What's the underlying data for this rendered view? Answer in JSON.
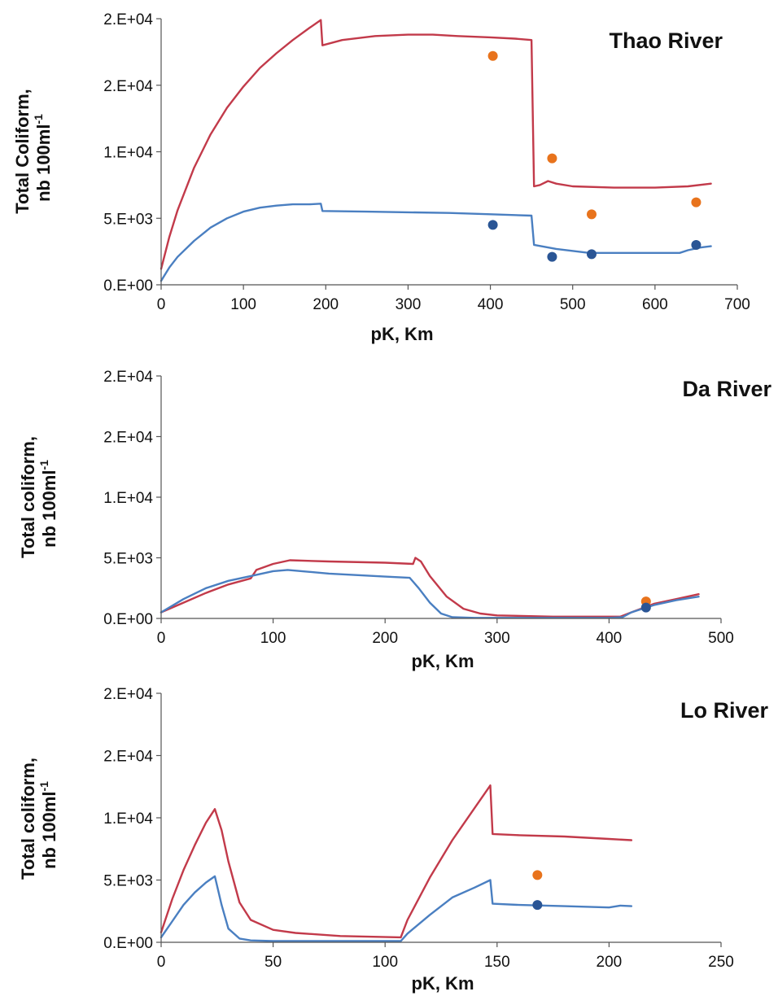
{
  "colors": {
    "simulated_high": "#c23a4a",
    "simulated_low": "#4a7fc1",
    "observed_high": "#e8731c",
    "observed_low": "#2a5595",
    "axis": "#555555"
  },
  "chart_data": [
    {
      "type": "line",
      "title": "Thao River",
      "xlabel": "pK, Km",
      "ylabel_line1": "Total Coliform,",
      "ylabel_line2": "nb 100ml",
      "ylabel_sup": "-1",
      "xlim": [
        0,
        700
      ],
      "x_ticks": [
        0,
        100,
        200,
        300,
        400,
        500,
        600,
        700
      ],
      "x_tick_labels": [
        "0",
        "100",
        "200",
        "300",
        "400",
        "500",
        "600",
        "700"
      ],
      "ylim": [
        0,
        20000
      ],
      "y_ticks": [
        0,
        5000,
        10000,
        15000,
        20000
      ],
      "y_tick_labels": [
        "0.E+00",
        "5.E+03",
        "1.E+04",
        "2.E+04",
        "2.E+04"
      ],
      "grid": false,
      "series": [
        {
          "style": "line",
          "color": "#c23a4a",
          "x": [
            0,
            10,
            20,
            40,
            60,
            80,
            100,
            120,
            140,
            160,
            180,
            194,
            196,
            220,
            260,
            300,
            330,
            360,
            400,
            430,
            450,
            453,
            460,
            470,
            480,
            500,
            550,
            600,
            640,
            668
          ],
          "y": [
            1200,
            3600,
            5600,
            8800,
            11300,
            13300,
            14900,
            16300,
            17400,
            18400,
            19300,
            19900,
            18000,
            18400,
            18700,
            18800,
            18800,
            18700,
            18600,
            18500,
            18400,
            7400,
            7500,
            7800,
            7600,
            7400,
            7300,
            7300,
            7400,
            7600
          ]
        },
        {
          "style": "line",
          "color": "#4a7fc1",
          "x": [
            0,
            10,
            20,
            40,
            60,
            80,
            100,
            120,
            140,
            160,
            180,
            194,
            196,
            250,
            300,
            350,
            400,
            450,
            453,
            480,
            520,
            560,
            600,
            630,
            640,
            655,
            668
          ],
          "y": [
            300,
            1300,
            2100,
            3300,
            4300,
            5000,
            5500,
            5800,
            5950,
            6050,
            6050,
            6100,
            5550,
            5500,
            5450,
            5400,
            5300,
            5200,
            3000,
            2700,
            2400,
            2400,
            2400,
            2400,
            2600,
            2800,
            2900
          ]
        },
        {
          "style": "scatter",
          "color": "#e8731c",
          "x": [
            403,
            475,
            523,
            650
          ],
          "y": [
            17200,
            9500,
            5300,
            6200
          ]
        },
        {
          "style": "scatter",
          "color": "#2a5595",
          "x": [
            403,
            475,
            523,
            650
          ],
          "y": [
            4500,
            2100,
            2300,
            3000
          ]
        }
      ]
    },
    {
      "type": "line",
      "title": "Da River",
      "xlabel": "pK, Km",
      "ylabel_line1": "Total coliform,",
      "ylabel_line2": "nb 100ml",
      "ylabel_sup": "-1",
      "xlim": [
        0,
        500
      ],
      "x_ticks": [
        0,
        100,
        200,
        300,
        400,
        500
      ],
      "x_tick_labels": [
        "0",
        "100",
        "200",
        "300",
        "400",
        "500"
      ],
      "ylim": [
        0,
        20000
      ],
      "y_ticks": [
        0,
        5000,
        10000,
        15000,
        20000
      ],
      "y_tick_labels": [
        "0.E+00",
        "5.E+03",
        "1.E+04",
        "2.E+04",
        "2.E+04"
      ],
      "grid": false,
      "series": [
        {
          "style": "line",
          "color": "#c23a4a",
          "x": [
            0,
            20,
            40,
            60,
            80,
            85,
            100,
            115,
            150,
            200,
            225,
            227,
            232,
            240,
            255,
            270,
            285,
            300,
            350,
            410,
            420,
            440,
            460,
            480
          ],
          "y": [
            500,
            1300,
            2100,
            2800,
            3300,
            4000,
            4500,
            4800,
            4700,
            4600,
            4500,
            5000,
            4700,
            3500,
            1800,
            800,
            400,
            250,
            150,
            150,
            500,
            1200,
            1600,
            2000
          ]
        },
        {
          "style": "line",
          "color": "#4a7fc1",
          "x": [
            0,
            20,
            40,
            60,
            80,
            100,
            113,
            150,
            200,
            222,
            230,
            240,
            250,
            260,
            280,
            300,
            400,
            412,
            420,
            440,
            460,
            480
          ],
          "y": [
            500,
            1600,
            2500,
            3100,
            3500,
            3900,
            4000,
            3700,
            3450,
            3350,
            2500,
            1300,
            400,
            100,
            50,
            50,
            50,
            100,
            500,
            1100,
            1500,
            1800
          ]
        },
        {
          "style": "scatter",
          "color": "#e8731c",
          "x": [
            433
          ],
          "y": [
            1400
          ]
        },
        {
          "style": "scatter",
          "color": "#2a5595",
          "x": [
            433
          ],
          "y": [
            900
          ]
        }
      ]
    },
    {
      "type": "line",
      "title": "Lo River",
      "xlabel": "pK, Km",
      "ylabel_line1": "Total coliform,",
      "ylabel_line2": "nb 100ml",
      "ylabel_sup": "-1",
      "xlim": [
        0,
        250
      ],
      "x_ticks": [
        0,
        50,
        100,
        150,
        200,
        250
      ],
      "x_tick_labels": [
        "0",
        "50",
        "100",
        "150",
        "200",
        "250"
      ],
      "ylim": [
        0,
        20000
      ],
      "y_ticks": [
        0,
        5000,
        10000,
        15000,
        20000
      ],
      "y_tick_labels": [
        "0.E+00",
        "5.E+03",
        "1.E+04",
        "2.E+04",
        "2.E+04"
      ],
      "grid": false,
      "series": [
        {
          "style": "line",
          "color": "#c23a4a",
          "x": [
            0,
            5,
            10,
            15,
            20,
            24,
            27,
            30,
            35,
            40,
            50,
            60,
            80,
            107,
            110,
            120,
            130,
            140,
            147,
            148,
            160,
            180,
            200,
            210
          ],
          "y": [
            800,
            3500,
            5800,
            7800,
            9600,
            10700,
            9000,
            6500,
            3200,
            1800,
            1000,
            750,
            500,
            400,
            1800,
            5200,
            8200,
            10800,
            12600,
            8700,
            8600,
            8500,
            8300,
            8200
          ]
        },
        {
          "style": "line",
          "color": "#4a7fc1",
          "x": [
            0,
            5,
            10,
            15,
            20,
            24,
            27,
            30,
            35,
            40,
            50,
            60,
            80,
            107,
            110,
            120,
            130,
            140,
            147,
            148,
            160,
            180,
            200,
            205,
            210
          ],
          "y": [
            400,
            1700,
            3000,
            4000,
            4800,
            5300,
            3000,
            1100,
            300,
            150,
            100,
            100,
            100,
            100,
            700,
            2200,
            3600,
            4400,
            5000,
            3100,
            3000,
            2900,
            2800,
            2950,
            2900
          ]
        },
        {
          "style": "scatter",
          "color": "#e8731c",
          "x": [
            168
          ],
          "y": [
            5400
          ]
        },
        {
          "style": "scatter",
          "color": "#2a5595",
          "x": [
            168
          ],
          "y": [
            3000
          ]
        }
      ]
    }
  ]
}
